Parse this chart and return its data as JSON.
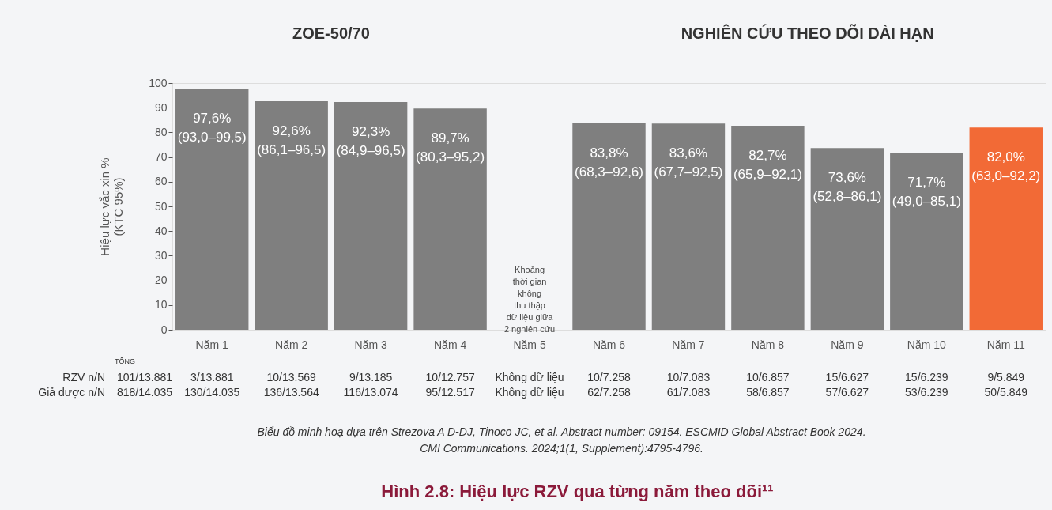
{
  "chart_data": {
    "type": "bar",
    "title": "Hình 2.8: Hiệu lực RZV qua từng năm theo dõi¹¹",
    "ylabel": "Hiệu lực vắc xin %\n(KTC 95%)",
    "categories": [
      "Năm 1",
      "Năm 2",
      "Năm 3",
      "Năm 4",
      "Năm 5",
      "Năm 6",
      "Năm 7",
      "Năm 8",
      "Năm 9",
      "Năm 10",
      "Năm 11"
    ],
    "values": [
      97.6,
      92.6,
      92.3,
      89.7,
      null,
      83.8,
      83.6,
      82.7,
      73.6,
      71.7,
      82.0
    ],
    "colors": [
      "#7f7f7f",
      "#7f7f7f",
      "#7f7f7f",
      "#7f7f7f",
      "#7f7f7f",
      "#7f7f7f",
      "#7f7f7f",
      "#7f7f7f",
      "#7f7f7f",
      "#7f7f7f",
      "#f26a36"
    ],
    "value_labels": [
      "97,6%\n(93,0–99,5)",
      "92,6%\n(86,1–96,5)",
      "92,3%\n(84,9–96,5)",
      "89,7%\n(80,3–95,2)",
      null,
      "83,8%\n(68,3–92,6)",
      "83,6%\n(67,7–92,5)",
      "82,7%\n(65,9–92,1)",
      "73,6%\n(52,8–86,1)",
      "71,7%\n(49,0–85,1)",
      "82,0%\n(63,0–92,2)"
    ],
    "ylim": [
      0,
      100
    ],
    "yticks": [
      0,
      10,
      20,
      30,
      40,
      50,
      60,
      70,
      80,
      90,
      100
    ],
    "grid": false,
    "annotations": [
      "ZOE-50/70",
      "NGHIÊN CỨU THEO DÕI DÀI HẠN",
      "Khoảng\nthời gian\nkhông\nthu thập\ndữ liệu giữa\n2 nghiên cứu",
      "TỔNG",
      "RZV n/N",
      "Giả dược n/N",
      "101/13.881",
      "818/14.035",
      "3/13.881",
      "10/13.569",
      "9/13.185",
      "10/12.757",
      "Không dữ liệu",
      "10/7.258",
      "10/7.083",
      "10/6.857",
      "15/6.627",
      "15/6.239",
      "9/5.849",
      "130/14.035",
      "136/13.564",
      "116/13.074",
      "95/12.517",
      "Không dữ liệu",
      "62/7.258",
      "61/7.083",
      "58/6.857",
      "57/6.627",
      "53/6.239",
      "50/5.849",
      "Biểu đồ minh hoạ dựa trên Strezova A D-DJ, Tinoco JC, et al. Abstract number: 09154. ESCMID Global Abstract Book 2024.",
      "CMI Communications. 2024;1(1, Supplement):4795-4796."
    ]
  }
}
